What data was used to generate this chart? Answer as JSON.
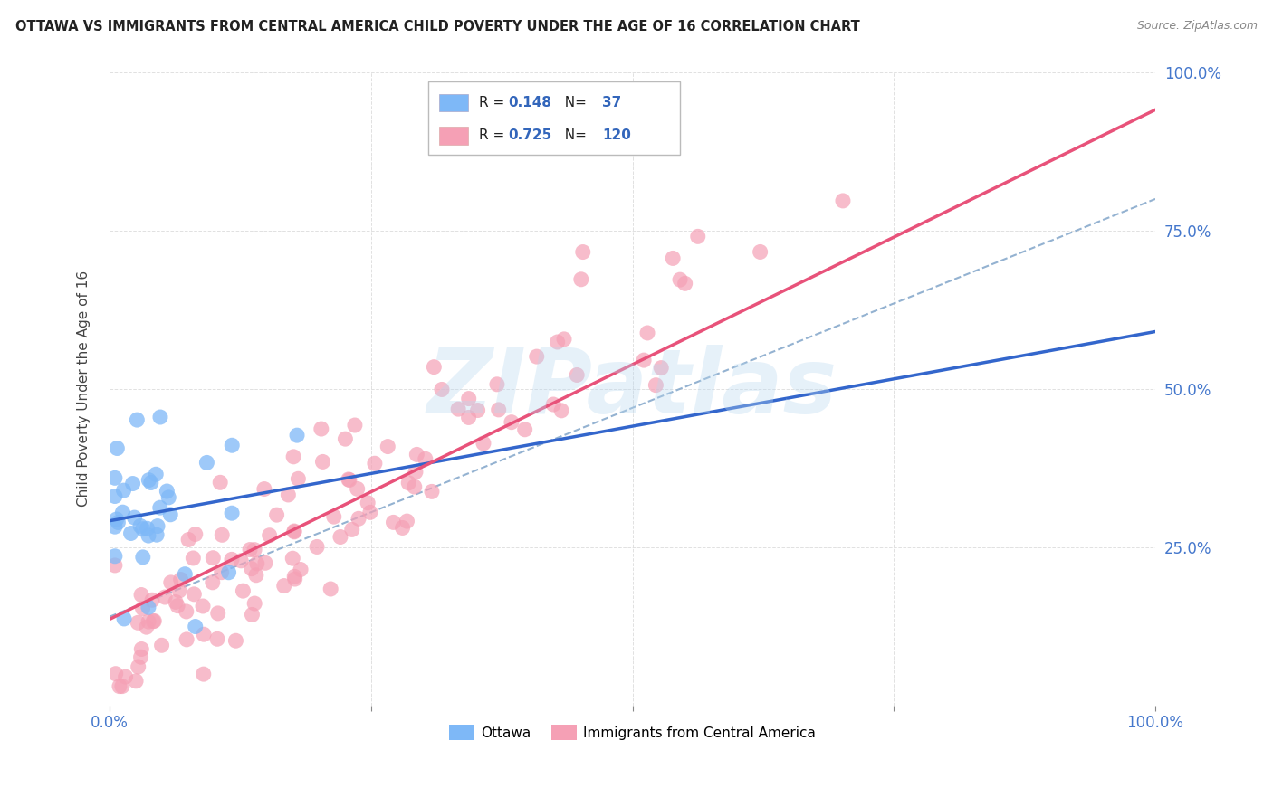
{
  "title": "OTTAWA VS IMMIGRANTS FROM CENTRAL AMERICA CHILD POVERTY UNDER THE AGE OF 16 CORRELATION CHART",
  "source": "Source: ZipAtlas.com",
  "ylabel_label": "Child Poverty Under the Age of 16",
  "x_min": 0.0,
  "x_max": 1.0,
  "y_min": 0.0,
  "y_max": 1.0,
  "x_ticks": [
    0.0,
    0.25,
    0.5,
    0.75,
    1.0
  ],
  "x_tick_labels": [
    "0.0%",
    "",
    "",
    "",
    "100.0%"
  ],
  "y_ticks": [
    0.0,
    0.25,
    0.5,
    0.75,
    1.0
  ],
  "y_tick_labels_right": [
    "",
    "25.0%",
    "50.0%",
    "75.0%",
    "100.0%"
  ],
  "ottawa_color": "#7eb8f7",
  "immigrants_color": "#f5a0b5",
  "ottawa_line_color": "#3366cc",
  "immigrants_line_color": "#e8527a",
  "dashed_line_color": "#88aacc",
  "ottawa_R": 0.148,
  "ottawa_N": 37,
  "immigrants_R": 0.725,
  "immigrants_N": 120,
  "legend_label_ottawa": "Ottawa",
  "legend_label_immigrants": "Immigrants from Central America",
  "background_color": "#ffffff",
  "grid_color": "#cccccc",
  "watermark_text": "ZIPatlas",
  "watermark_color": "#b8d8f0",
  "watermark_alpha": 0.35,
  "title_color": "#222222",
  "source_color": "#888888",
  "tick_color": "#4477cc",
  "axis_label_color": "#444444",
  "legend_text_color": "#222222",
  "legend_value_color": "#3366bb"
}
